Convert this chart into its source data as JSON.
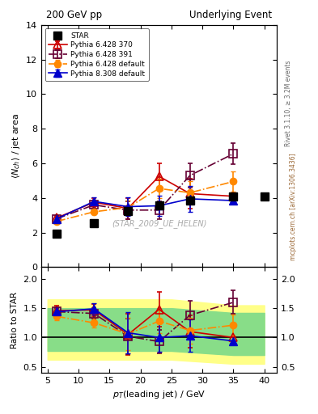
{
  "title_left": "200 GeV pp",
  "title_right": "Underlying Event",
  "right_label_top": "Rivet 3.1.10, ≥ 3.2M events",
  "right_label_bottom": "mcplots.cern.ch [arXiv:1306.3436]",
  "watermark": "(STAR_2009_UE_HELEN)",
  "star_x": [
    6.5,
    12.5,
    18.0,
    23.0,
    28.0,
    35.0,
    40.0
  ],
  "star_y": [
    1.95,
    2.55,
    3.25,
    3.55,
    3.85,
    4.1,
    4.1
  ],
  "star_yerr": [
    0.0,
    0.0,
    0.0,
    0.0,
    0.0,
    0.0,
    0.0
  ],
  "p6_370_x": [
    6.5,
    12.5,
    18.0,
    23.0,
    28.0,
    35.0
  ],
  "p6_370_y": [
    2.85,
    3.75,
    3.4,
    5.25,
    4.25,
    4.1
  ],
  "p6_370_yerr": [
    0.1,
    0.25,
    0.6,
    0.75,
    0.85,
    0.0
  ],
  "p6_391_x": [
    6.5,
    12.5,
    18.0,
    23.0,
    28.0,
    35.0
  ],
  "p6_391_y": [
    2.8,
    3.6,
    3.3,
    3.3,
    5.3,
    6.55
  ],
  "p6_391_yerr": [
    0.08,
    0.2,
    0.5,
    0.5,
    0.7,
    0.6
  ],
  "p6_def_x": [
    6.5,
    12.5,
    18.0,
    23.0,
    28.0,
    35.0
  ],
  "p6_def_y": [
    2.65,
    3.2,
    3.45,
    4.55,
    4.3,
    4.95
  ],
  "p6_def_yerr": [
    0.08,
    0.15,
    0.4,
    0.55,
    0.65,
    0.6
  ],
  "p8_def_x": [
    6.5,
    12.5,
    18.0,
    23.0,
    28.0,
    35.0
  ],
  "p8_def_y": [
    2.8,
    3.8,
    3.5,
    3.55,
    3.95,
    3.85
  ],
  "p8_def_yerr": [
    0.1,
    0.25,
    0.55,
    0.6,
    0.75,
    0.0
  ],
  "ratio_p6_370_y": [
    1.46,
    1.47,
    1.05,
    1.48,
    1.1,
    1.0
  ],
  "ratio_p6_370_yerr": [
    0.08,
    0.1,
    0.35,
    0.3,
    0.28,
    0.0
  ],
  "ratio_p6_391_y": [
    1.44,
    1.41,
    1.02,
    0.93,
    1.38,
    1.6
  ],
  "ratio_p6_391_yerr": [
    0.06,
    0.09,
    0.3,
    0.2,
    0.25,
    0.2
  ],
  "ratio_p6_def_y": [
    1.36,
    1.25,
    1.06,
    1.28,
    1.12,
    1.21
  ],
  "ratio_p6_def_yerr": [
    0.07,
    0.08,
    0.28,
    0.2,
    0.22,
    0.18
  ],
  "ratio_p8_def_y": [
    1.44,
    1.49,
    1.08,
    1.0,
    1.03,
    0.94
  ],
  "ratio_p8_def_yerr": [
    0.08,
    0.1,
    0.35,
    0.25,
    0.28,
    0.0
  ],
  "band_yellow_x": [
    5,
    15,
    25,
    35,
    40
  ],
  "band_yellow_ylo": [
    0.62,
    0.62,
    0.62,
    0.55,
    0.55
  ],
  "band_yellow_yhi": [
    1.65,
    1.65,
    1.65,
    1.55,
    1.55
  ],
  "band_green_x": [
    5,
    15,
    25,
    35,
    40
  ],
  "band_green_ylo": [
    0.77,
    0.77,
    0.77,
    0.7,
    0.7
  ],
  "band_green_yhi": [
    1.5,
    1.5,
    1.5,
    1.42,
    1.42
  ],
  "color_star": "#000000",
  "color_p6_370": "#cc0000",
  "color_p6_391": "#660033",
  "color_p6_def": "#ff8800",
  "color_p8_def": "#0000cc",
  "ylabel_main": "⟨ N_{ch} ⟩ / jet area",
  "ylabel_ratio": "Ratio to STAR",
  "xlabel": "p_T(leading jet) / GeV",
  "ylim_main": [
    0,
    14
  ],
  "ylim_ratio": [
    0.4,
    2.2
  ],
  "yticks_main": [
    0,
    2,
    4,
    6,
    8,
    10,
    12,
    14
  ],
  "yticks_ratio": [
    0.5,
    1.0,
    1.5,
    2.0
  ],
  "xticks": [
    5,
    10,
    15,
    20,
    25,
    30,
    35,
    40
  ]
}
